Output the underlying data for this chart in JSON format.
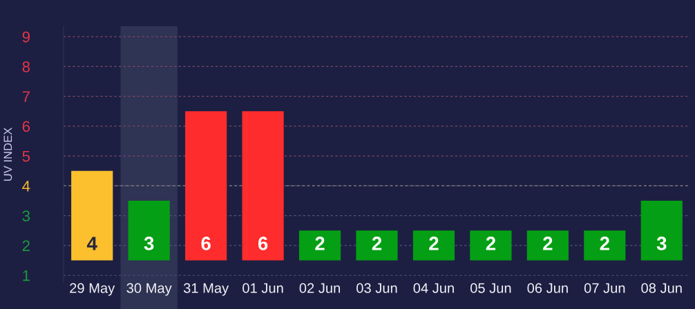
{
  "chart_data": {
    "type": "bar",
    "ylabel": "UV INDEX",
    "categories": [
      "29 May",
      "30 May",
      "31 May",
      "01 Jun",
      "02 Jun",
      "03 Jun",
      "04 Jun",
      "05 Jun",
      "06 Jun",
      "07 Jun",
      "08 Jun"
    ],
    "base": [
      1.5,
      1.5,
      1.5,
      1.5,
      1.5,
      1.5,
      1.5,
      1.5,
      1.5,
      1.5,
      1.5
    ],
    "values": [
      3,
      2,
      5,
      5,
      1,
      1,
      1,
      1,
      1,
      1,
      2
    ],
    "colors": [
      "#fcbf2e",
      "#049f14",
      "#fe2c2c",
      "#fe2c2c",
      "#049f14",
      "#049f14",
      "#049f14",
      "#049f14",
      "#049f14",
      "#049f14",
      "#049f14"
    ],
    "value_labels": [
      "4",
      "3",
      "6",
      "6",
      "2",
      "2",
      "2",
      "2",
      "2",
      "2",
      "3"
    ],
    "ylim": [
      0.75,
      9.35
    ],
    "yticks": [
      1,
      2,
      3,
      4,
      5,
      6,
      7,
      8,
      9
    ],
    "grid": "y",
    "ref_lines": [
      {
        "axis": "y",
        "value": 4,
        "color": "#8c8478",
        "line_style": "dashed"
      }
    ],
    "bands": [
      {
        "axis": "x",
        "from": "30 May",
        "to": "30 May",
        "color": "#2f3354"
      }
    ]
  }
}
